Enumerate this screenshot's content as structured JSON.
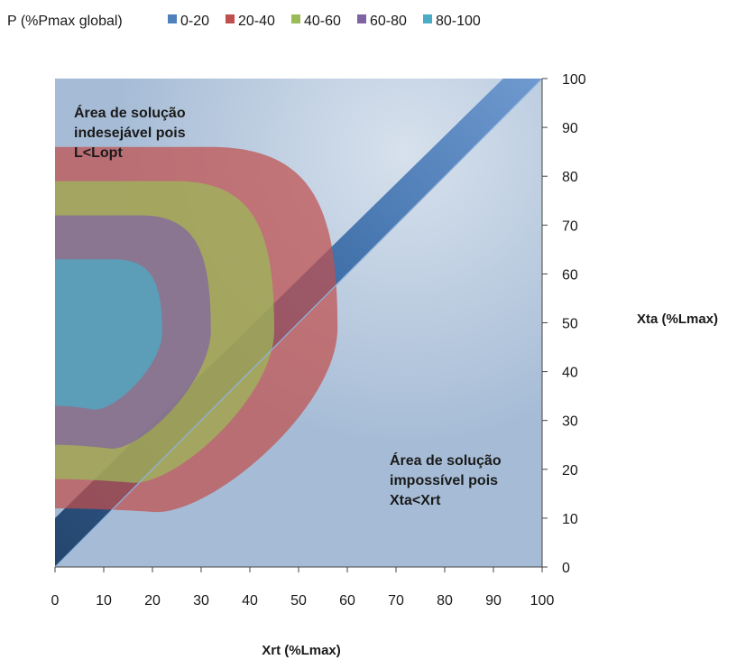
{
  "chart_data": {
    "type": "area",
    "legend": {
      "title": "P (%Pmax global)",
      "position": "top-left",
      "entries": [
        {
          "label": "0-20",
          "color": "#4F81BD"
        },
        {
          "label": "20-40",
          "color": "#C0504D"
        },
        {
          "label": "40-60",
          "color": "#9BBB59"
        },
        {
          "label": "60-80",
          "color": "#8064A2"
        },
        {
          "label": "80-100",
          "color": "#4BACC6"
        }
      ]
    },
    "x_axis": {
      "label": "Xrt (%Lmax)",
      "range": [
        0,
        100
      ],
      "ticks": [
        "0",
        "10",
        "20",
        "30",
        "40",
        "50",
        "60",
        "70",
        "80",
        "90",
        "100"
      ]
    },
    "y_axis": {
      "label": "Xta (%Lmax)",
      "range": [
        0,
        100
      ],
      "ticks": [
        "0",
        "10",
        "20",
        "30",
        "40",
        "50",
        "60",
        "70",
        "80",
        "90",
        "100"
      ],
      "side": "right"
    },
    "series": [
      {
        "name": "0-20",
        "color": "#4F81BD",
        "boundary": "Xta = Xrt",
        "x": [
          0,
          100
        ],
        "y": [
          0,
          100
        ]
      },
      {
        "name": "20-40",
        "color": "#C0504D",
        "y_at_x0": [
          12,
          86
        ],
        "x_max": 58
      },
      {
        "name": "40-60",
        "color": "#9BBB59",
        "y_at_x0": [
          18,
          79
        ],
        "x_max": 45
      },
      {
        "name": "60-80",
        "color": "#8064A2",
        "y_at_x0": [
          25,
          72
        ],
        "x_max": 32
      },
      {
        "name": "80-100",
        "color": "#4BACC6",
        "y_at_x0": [
          33,
          63
        ],
        "x_max": 22
      }
    ],
    "annotations": [
      {
        "lines": [
          "Área de solução",
          "indesejável pois",
          "L<Lopt"
        ],
        "position": "upper-left"
      },
      {
        "lines": [
          "Área de solução",
          "impossível pois",
          "Xta<Xrt"
        ],
        "position": "lower-right"
      }
    ],
    "grid": false
  }
}
